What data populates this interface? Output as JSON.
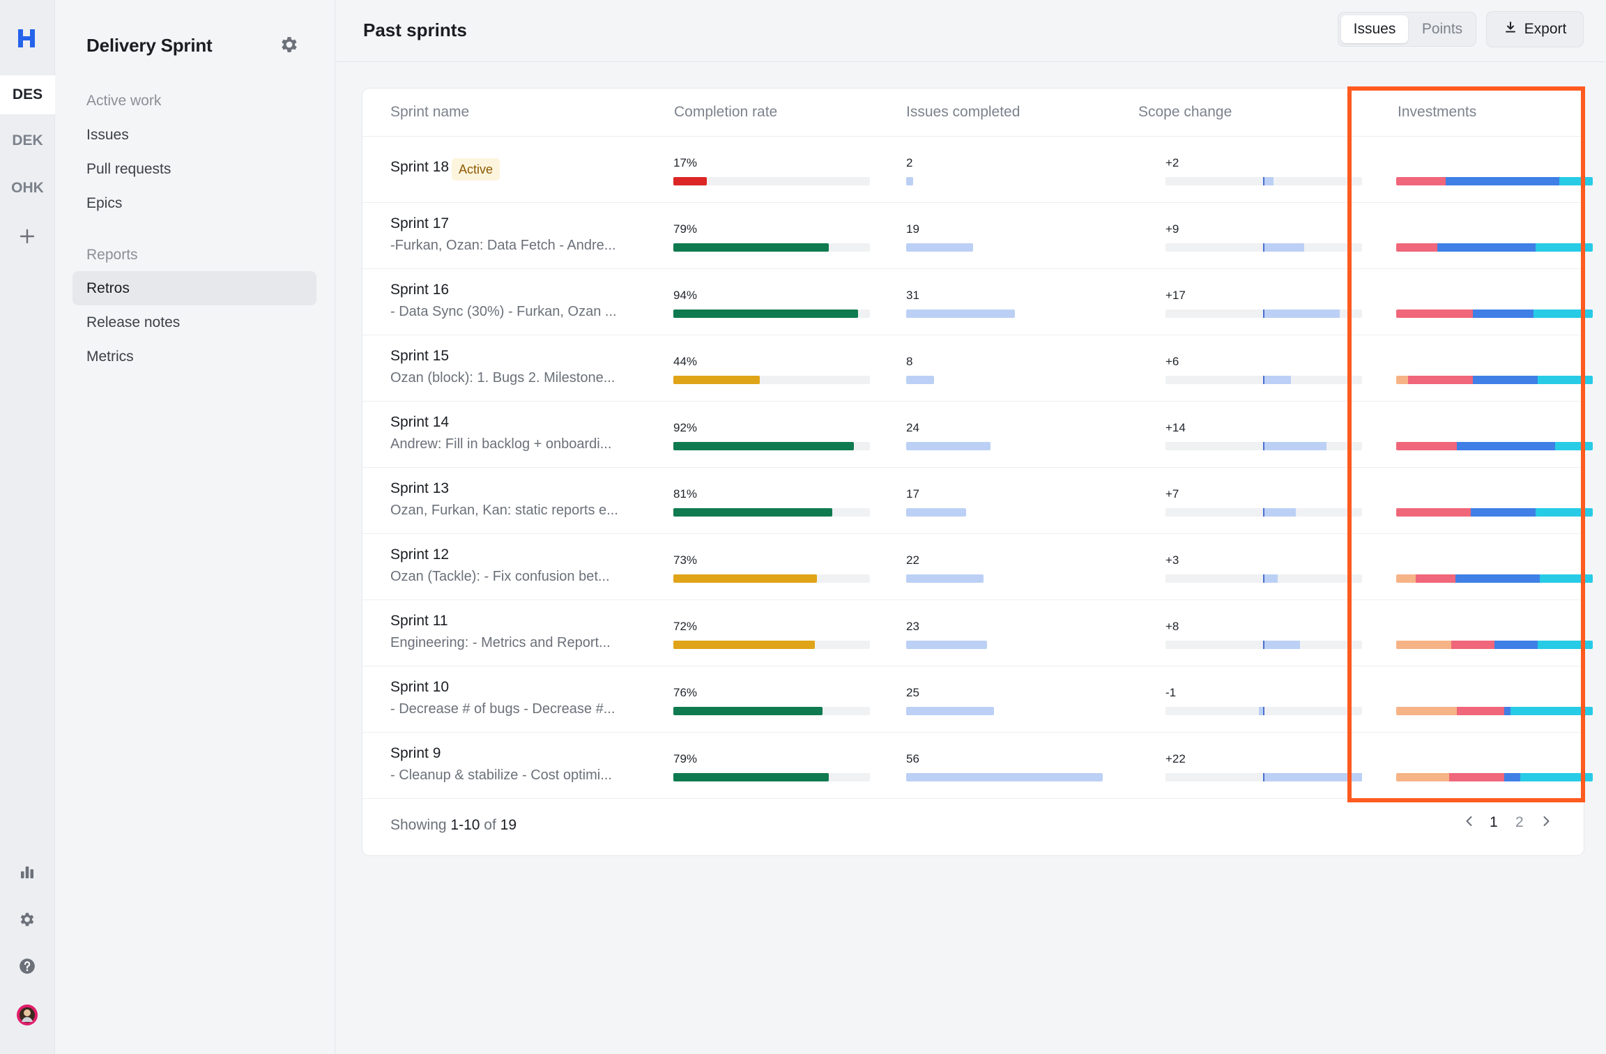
{
  "rail": {
    "logo": "H",
    "workspaces": [
      {
        "label": "DES",
        "active": true
      },
      {
        "label": "DEK",
        "active": false
      },
      {
        "label": "OHK",
        "active": false
      }
    ]
  },
  "nav": {
    "title": "Delivery Sprint",
    "section_active_work": "Active work",
    "issues": "Issues",
    "pull_requests": "Pull requests",
    "epics": "Epics",
    "section_reports": "Reports",
    "retros": "Retros",
    "release_notes": "Release notes",
    "metrics": "Metrics"
  },
  "header": {
    "title": "Past sprints",
    "toggle_issues": "Issues",
    "toggle_points": "Points",
    "export": "Export"
  },
  "table": {
    "columns": [
      "Sprint name",
      "Completion rate",
      "Issues completed",
      "Scope change",
      "Investments"
    ],
    "rows": [
      {
        "name": "Sprint 18",
        "badge": "Active",
        "desc": "",
        "completion": "17%",
        "pct": 17,
        "status": "low",
        "issues": "2",
        "issues_n": 2,
        "scope": "+2",
        "scope_n": 2,
        "inv": [
          {
            "c": "#f0667a",
            "w": 25
          },
          {
            "c": "#3f7fe6",
            "w": 58
          },
          {
            "c": "#27cbe5",
            "w": 17
          }
        ]
      },
      {
        "name": "Sprint 17",
        "badge": "",
        "desc": "-Furkan, Ozan: Data Fetch - Andre...",
        "completion": "79%",
        "pct": 79,
        "status": "good",
        "issues": "19",
        "issues_n": 19,
        "scope": "+9",
        "scope_n": 9,
        "inv": [
          {
            "c": "#f0667a",
            "w": 21
          },
          {
            "c": "#3f7fe6",
            "w": 50
          },
          {
            "c": "#27cbe5",
            "w": 29
          }
        ]
      },
      {
        "name": "Sprint 16",
        "badge": "",
        "desc": "- Data Sync (30%) - Furkan, Ozan ...",
        "completion": "94%",
        "pct": 94,
        "status": "good",
        "issues": "31",
        "issues_n": 31,
        "scope": "+17",
        "scope_n": 17,
        "inv": [
          {
            "c": "#f0667a",
            "w": 39
          },
          {
            "c": "#3f7fe6",
            "w": 31
          },
          {
            "c": "#27cbe5",
            "w": 30
          }
        ]
      },
      {
        "name": "Sprint 15",
        "badge": "",
        "desc": "Ozan (block): 1. Bugs 2. Milestone...",
        "completion": "44%",
        "pct": 44,
        "status": "mid",
        "issues": "8",
        "issues_n": 8,
        "scope": "+6",
        "scope_n": 6,
        "inv": [
          {
            "c": "#f6b385",
            "w": 6
          },
          {
            "c": "#f0667a",
            "w": 33
          },
          {
            "c": "#3f7fe6",
            "w": 33
          },
          {
            "c": "#27cbe5",
            "w": 28
          }
        ]
      },
      {
        "name": "Sprint 14",
        "badge": "",
        "desc": "Andrew: Fill in backlog + onboardi...",
        "completion": "92%",
        "pct": 92,
        "status": "good",
        "issues": "24",
        "issues_n": 24,
        "scope": "+14",
        "scope_n": 14,
        "inv": [
          {
            "c": "#f0667a",
            "w": 31
          },
          {
            "c": "#3f7fe6",
            "w": 50
          },
          {
            "c": "#27cbe5",
            "w": 19
          }
        ]
      },
      {
        "name": "Sprint 13",
        "badge": "",
        "desc": "Ozan, Furkan, Kan: static reports e...",
        "completion": "81%",
        "pct": 81,
        "status": "good",
        "issues": "17",
        "issues_n": 17,
        "scope": "+7",
        "scope_n": 7,
        "inv": [
          {
            "c": "#f0667a",
            "w": 38
          },
          {
            "c": "#3f7fe6",
            "w": 33
          },
          {
            "c": "#27cbe5",
            "w": 29
          }
        ]
      },
      {
        "name": "Sprint 12",
        "badge": "",
        "desc": "Ozan (Tackle): - Fix confusion bet...",
        "completion": "73%",
        "pct": 73,
        "status": "mid",
        "issues": "22",
        "issues_n": 22,
        "scope": "+3",
        "scope_n": 3,
        "inv": [
          {
            "c": "#f6b385",
            "w": 10
          },
          {
            "c": "#f0667a",
            "w": 20
          },
          {
            "c": "#3f7fe6",
            "w": 43
          },
          {
            "c": "#27cbe5",
            "w": 27
          }
        ]
      },
      {
        "name": "Sprint 11",
        "badge": "",
        "desc": "Engineering: - Metrics and Report...",
        "completion": "72%",
        "pct": 72,
        "status": "mid",
        "issues": "23",
        "issues_n": 23,
        "scope": "+8",
        "scope_n": 8,
        "inv": [
          {
            "c": "#f6b385",
            "w": 28
          },
          {
            "c": "#f0667a",
            "w": 22
          },
          {
            "c": "#3f7fe6",
            "w": 22
          },
          {
            "c": "#27cbe5",
            "w": 28
          }
        ]
      },
      {
        "name": "Sprint 10",
        "badge": "",
        "desc": "- Decrease # of bugs - Decrease #...",
        "completion": "76%",
        "pct": 76,
        "status": "good",
        "issues": "25",
        "issues_n": 25,
        "scope": "-1",
        "scope_n": -1,
        "inv": [
          {
            "c": "#f6b385",
            "w": 31
          },
          {
            "c": "#f0667a",
            "w": 24
          },
          {
            "c": "#3f7fe6",
            "w": 3
          },
          {
            "c": "#27cbe5",
            "w": 42
          }
        ]
      },
      {
        "name": "Sprint 9",
        "badge": "",
        "desc": "- Cleanup & stabilize - Cost optimi...",
        "completion": "79%",
        "pct": 79,
        "status": "good",
        "issues": "56",
        "issues_n": 56,
        "scope": "+22",
        "scope_n": 22,
        "inv": [
          {
            "c": "#f6b385",
            "w": 27
          },
          {
            "c": "#f0667a",
            "w": 28
          },
          {
            "c": "#3f7fe6",
            "w": 8
          },
          {
            "c": "#27cbe5",
            "w": 37
          }
        ]
      }
    ]
  },
  "footer": {
    "showing": "Showing",
    "range": "1-10",
    "of": "of",
    "total": "19",
    "page1": "1",
    "page2": "2"
  },
  "colors": {
    "good": "#0f7a4f",
    "mid": "#e0a419",
    "low": "#dc2626",
    "highlight": "#ff5a1f"
  }
}
